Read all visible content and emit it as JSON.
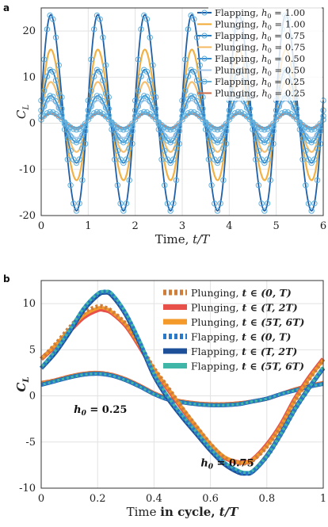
{
  "colors": {
    "flap_100": "#1f5fa8",
    "plunge_100": "#f0a830",
    "flap_075": "#2e7fc0",
    "plunge_075": "#f4b860",
    "flap_050": "#3b8fd0",
    "plunge_050": "#a8c8e8",
    "flap_025": "#6aaed6",
    "plunge_025": "#c96a4a",
    "b_plunge_0T": "#cf7d3a",
    "b_plunge_T2T": "#e8504a",
    "b_plunge_5T6T": "#f39a2b",
    "b_flap_0T": "#2a78c8",
    "b_flap_T2T": "#1e4f99",
    "b_flap_5T6T": "#3fb6a8",
    "circle_marker": "#5aaede"
  },
  "chart_data": [
    {
      "panel": "a",
      "type": "line",
      "xlabel": "Time, t/T",
      "ylabel": "C_L",
      "xlim": [
        0,
        6
      ],
      "ylim": [
        -20,
        25
      ],
      "xticks": [
        "0",
        "1",
        "2",
        "3",
        "4",
        "5",
        "6"
      ],
      "yticks": [
        "-20",
        "-10",
        "0",
        "10",
        "20"
      ],
      "grid": true,
      "legend_position": "top-right",
      "series": [
        {
          "name": "Flapping, h0 = 1.00",
          "label": "Flapping, ",
          "h0": "1.00",
          "color_key": "flap_100",
          "amp": 21,
          "offset": 1.8,
          "markers": true
        },
        {
          "name": "Plunging, h0 = 1.00",
          "label": "Plunging, ",
          "h0": "1.00",
          "color_key": "plunge_100",
          "amp": 14,
          "offset": 1.5,
          "markers": false
        },
        {
          "name": "Flapping, h0 = 0.75",
          "label": "Flapping, ",
          "h0": "0.75",
          "color_key": "flap_075",
          "amp": 10,
          "offset": 1.3,
          "markers": true
        },
        {
          "name": "Plunging, h0 = 0.75",
          "label": "Plunging, ",
          "h0": "0.75",
          "color_key": "plunge_075",
          "amp": 7.5,
          "offset": 1.2,
          "markers": false
        },
        {
          "name": "Flapping, h0 = 0.50",
          "label": "Flapping, ",
          "h0": "0.50",
          "color_key": "flap_050",
          "amp": 5,
          "offset": 0.8,
          "markers": true
        },
        {
          "name": "Plunging, h0 = 0.50",
          "label": "Plunging, ",
          "h0": "0.50",
          "color_key": "plunge_050",
          "amp": 4,
          "offset": 0.8,
          "markers": false
        },
        {
          "name": "Flapping, h0 = 0.25",
          "label": "Flapping, ",
          "h0": "0.25",
          "color_key": "flap_025",
          "amp": 1.9,
          "offset": 0.5,
          "markers": true
        },
        {
          "name": "Plunging, h0 = 0.25",
          "label": "Plunging, ",
          "h0": "0.25",
          "color_key": "plunge_025",
          "amp": 1.5,
          "offset": 0.5,
          "markers": false
        }
      ]
    },
    {
      "panel": "b",
      "type": "line",
      "xlabel": "Time in cycle, t/T",
      "ylabel": "C_L",
      "xlim": [
        0,
        1
      ],
      "ylim": [
        -10,
        12.5
      ],
      "xticks": [
        "0",
        "0.2",
        "0.4",
        "0.6",
        "0.8",
        "1"
      ],
      "yticks": [
        "-10",
        "-5",
        "0",
        "5",
        "10"
      ],
      "grid": true,
      "legend_position": "top-right",
      "annotations": [
        {
          "text": "h0 = 0.25",
          "x": 0.02,
          "y": -1.5
        },
        {
          "text": "h0 = 0.75",
          "x": 0.47,
          "y": -7.3
        }
      ],
      "curves_h075": {
        "x": [
          0,
          0.05,
          0.1,
          0.15,
          0.2,
          0.225,
          0.25,
          0.3,
          0.35,
          0.4,
          0.45,
          0.5,
          0.55,
          0.6,
          0.65,
          0.7,
          0.725,
          0.75,
          0.8,
          0.85,
          0.9,
          0.95,
          1
        ],
        "plunging_0T": [
          4.0,
          5.6,
          7.4,
          9.0,
          9.7,
          9.6,
          9.2,
          7.8,
          5.5,
          3.0,
          0.9,
          -1.3,
          -3.3,
          -5.2,
          -6.7,
          -7.3,
          -7.3,
          -7.0,
          -5.5,
          -3.3,
          -0.5,
          1.8,
          3.9
        ],
        "plunging_T2T": [
          4.0,
          5.4,
          7.0,
          8.5,
          9.3,
          9.3,
          9.0,
          7.6,
          5.3,
          2.8,
          0.7,
          -1.4,
          -3.4,
          -5.3,
          -6.7,
          -7.2,
          -7.2,
          -6.9,
          -5.3,
          -3.1,
          -0.3,
          2.0,
          4.0
        ],
        "plunging_5T6T": [
          4.0,
          5.5,
          7.2,
          8.7,
          9.5,
          9.5,
          9.1,
          7.7,
          5.4,
          2.9,
          0.8,
          -1.3,
          -3.3,
          -5.2,
          -6.6,
          -7.2,
          -7.2,
          -6.9,
          -5.4,
          -3.2,
          -0.4,
          1.9,
          3.9
        ],
        "flapping_0T": [
          3.0,
          4.8,
          7.0,
          9.4,
          11.0,
          11.3,
          11.0,
          8.9,
          5.8,
          2.3,
          -0.2,
          -2.2,
          -4.0,
          -5.8,
          -7.3,
          -8.2,
          -8.4,
          -8.2,
          -6.6,
          -4.2,
          -1.5,
          0.8,
          3.0
        ],
        "flapping_T2T": [
          3.0,
          4.7,
          6.9,
          9.3,
          10.9,
          11.2,
          10.9,
          8.8,
          5.7,
          2.2,
          -0.3,
          -2.3,
          -4.1,
          -5.9,
          -7.4,
          -8.3,
          -8.4,
          -8.2,
          -6.5,
          -4.1,
          -1.4,
          0.9,
          3.0
        ],
        "flapping_5T6T": [
          3.1,
          4.9,
          7.1,
          9.5,
          11.1,
          11.3,
          11.1,
          9.0,
          5.9,
          2.4,
          -0.1,
          -2.1,
          -3.9,
          -5.7,
          -7.2,
          -8.1,
          -8.3,
          -8.1,
          -6.5,
          -4.1,
          -1.4,
          0.9,
          3.1
        ]
      },
      "curves_h025": {
        "x": [
          0,
          0.05,
          0.1,
          0.15,
          0.2,
          0.25,
          0.3,
          0.35,
          0.4,
          0.45,
          0.5,
          0.55,
          0.6,
          0.65,
          0.7,
          0.75,
          0.8,
          0.85,
          0.9,
          0.95,
          1
        ],
        "plunging": [
          1.4,
          1.7,
          2.1,
          2.4,
          2.5,
          2.3,
          1.8,
          1.1,
          0.3,
          -0.3,
          -0.6,
          -0.8,
          -0.9,
          -0.9,
          -0.8,
          -0.6,
          -0.3,
          0.2,
          0.7,
          1.1,
          1.4
        ],
        "flapping": [
          1.2,
          1.6,
          2.0,
          2.3,
          2.4,
          2.2,
          1.7,
          1.0,
          0.2,
          -0.4,
          -0.7,
          -0.9,
          -1.0,
          -1.0,
          -0.9,
          -0.6,
          -0.3,
          0.2,
          0.6,
          1.0,
          1.3
        ]
      },
      "legend": [
        {
          "label": "Plunging, ",
          "time": "t ∈ (0, T)",
          "color_key": "b_plunge_0T",
          "dash": true
        },
        {
          "label": "Plunging, ",
          "time": "t ∈ (T, 2T)",
          "color_key": "b_plunge_T2T",
          "dash": false
        },
        {
          "label": "Plunging, ",
          "time": "t ∈ (5T, 6T)",
          "color_key": "b_plunge_5T6T",
          "dash": false
        },
        {
          "label": "Flapping, ",
          "time": "t ∈ (0, T)",
          "color_key": "b_flap_0T",
          "dash": true
        },
        {
          "label": "Flapping, ",
          "time": "t ∈ (T, 2T)",
          "color_key": "b_flap_T2T",
          "dash": false
        },
        {
          "label": "Flapping, ",
          "time": "t ∈ (5T, 6T)",
          "color_key": "b_flap_5T6T",
          "dash": false
        }
      ]
    }
  ],
  "labels": {
    "panel_a": "a",
    "panel_b": "b",
    "a_xlabel_prefix": "Time, ",
    "a_xlabel_var": "t/T",
    "b_xlabel_prefix": "Time ",
    "b_xlabel_bold": "in cycle, ",
    "b_xlabel_var": "t/T",
    "ylabel_C": "C",
    "ylabel_sub": "L",
    "h0_var": "h",
    "h0_sub": "0",
    "h0_eq": " = "
  }
}
